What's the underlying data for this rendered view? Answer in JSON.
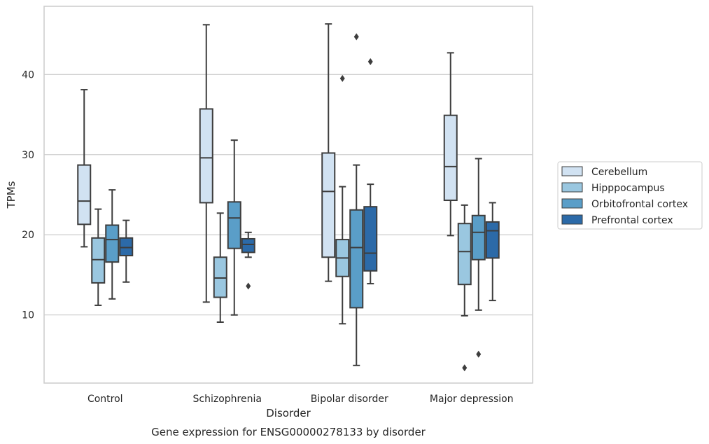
{
  "caption": "Gene expression for ENSG00000278133 by disorder",
  "chart_data": {
    "type": "box",
    "title": "",
    "xlabel": "Disorder",
    "ylabel": "TPMs",
    "ylim": [
      1.5,
      48.5
    ],
    "yticks": [
      10,
      20,
      30,
      40
    ],
    "grid": "horizontal",
    "legend_placement": "right",
    "categories": [
      "Control",
      "Schizophrenia",
      "Bipolar disorder",
      "Major depression"
    ],
    "series": [
      {
        "name": "Cerebellum",
        "color": "#d1e2f2",
        "boxes": [
          {
            "whislo": 18.5,
            "q1": 21.3,
            "med": 24.2,
            "q3": 28.7,
            "whishi": 38.1,
            "fliers": []
          },
          {
            "whislo": 11.6,
            "q1": 24.0,
            "med": 29.6,
            "q3": 35.7,
            "whishi": 46.2,
            "fliers": []
          },
          {
            "whislo": 14.2,
            "q1": 17.2,
            "med": 25.4,
            "q3": 30.2,
            "whishi": 46.3,
            "fliers": []
          },
          {
            "whislo": 19.9,
            "q1": 24.3,
            "med": 28.5,
            "q3": 34.9,
            "whishi": 42.7,
            "fliers": []
          }
        ]
      },
      {
        "name": "Hipppocampus",
        "color": "#9ac7e0",
        "boxes": [
          {
            "whislo": 11.2,
            "q1": 14.0,
            "med": 16.9,
            "q3": 19.6,
            "whishi": 23.2,
            "fliers": []
          },
          {
            "whislo": 9.1,
            "q1": 12.2,
            "med": 14.6,
            "q3": 17.2,
            "whishi": 22.7,
            "fliers": []
          },
          {
            "whislo": 8.9,
            "q1": 14.8,
            "med": 17.1,
            "q3": 19.4,
            "whishi": 26.0,
            "fliers": [
              39.5
            ]
          },
          {
            "whislo": 9.9,
            "q1": 13.8,
            "med": 17.9,
            "q3": 21.4,
            "whishi": 23.7,
            "fliers": [
              3.4
            ]
          }
        ]
      },
      {
        "name": "Orbitofrontal cortex",
        "color": "#5a9ec8",
        "boxes": [
          {
            "whislo": 12.0,
            "q1": 16.6,
            "med": 19.4,
            "q3": 21.2,
            "whishi": 25.6,
            "fliers": []
          },
          {
            "whislo": 10.0,
            "q1": 18.3,
            "med": 22.1,
            "q3": 24.1,
            "whishi": 31.8,
            "fliers": []
          },
          {
            "whislo": 3.7,
            "q1": 10.9,
            "med": 18.4,
            "q3": 23.1,
            "whishi": 28.7,
            "fliers": [
              44.7
            ]
          },
          {
            "whislo": 10.6,
            "q1": 16.9,
            "med": 20.3,
            "q3": 22.4,
            "whishi": 29.5,
            "fliers": [
              5.1
            ]
          }
        ]
      },
      {
        "name": "Prefrontal cortex",
        "color": "#2c6aa8",
        "boxes": [
          {
            "whislo": 14.1,
            "q1": 17.4,
            "med": 18.4,
            "q3": 19.6,
            "whishi": 21.8,
            "fliers": []
          },
          {
            "whislo": 17.2,
            "q1": 17.8,
            "med": 18.8,
            "q3": 19.5,
            "whishi": 20.3,
            "fliers": [
              13.6
            ]
          },
          {
            "whislo": 13.9,
            "q1": 15.5,
            "med": 17.7,
            "q3": 23.5,
            "whishi": 26.3,
            "fliers": [
              41.6
            ]
          },
          {
            "whislo": 11.8,
            "q1": 17.1,
            "med": 20.5,
            "q3": 21.6,
            "whishi": 24.0,
            "fliers": []
          }
        ]
      }
    ]
  }
}
